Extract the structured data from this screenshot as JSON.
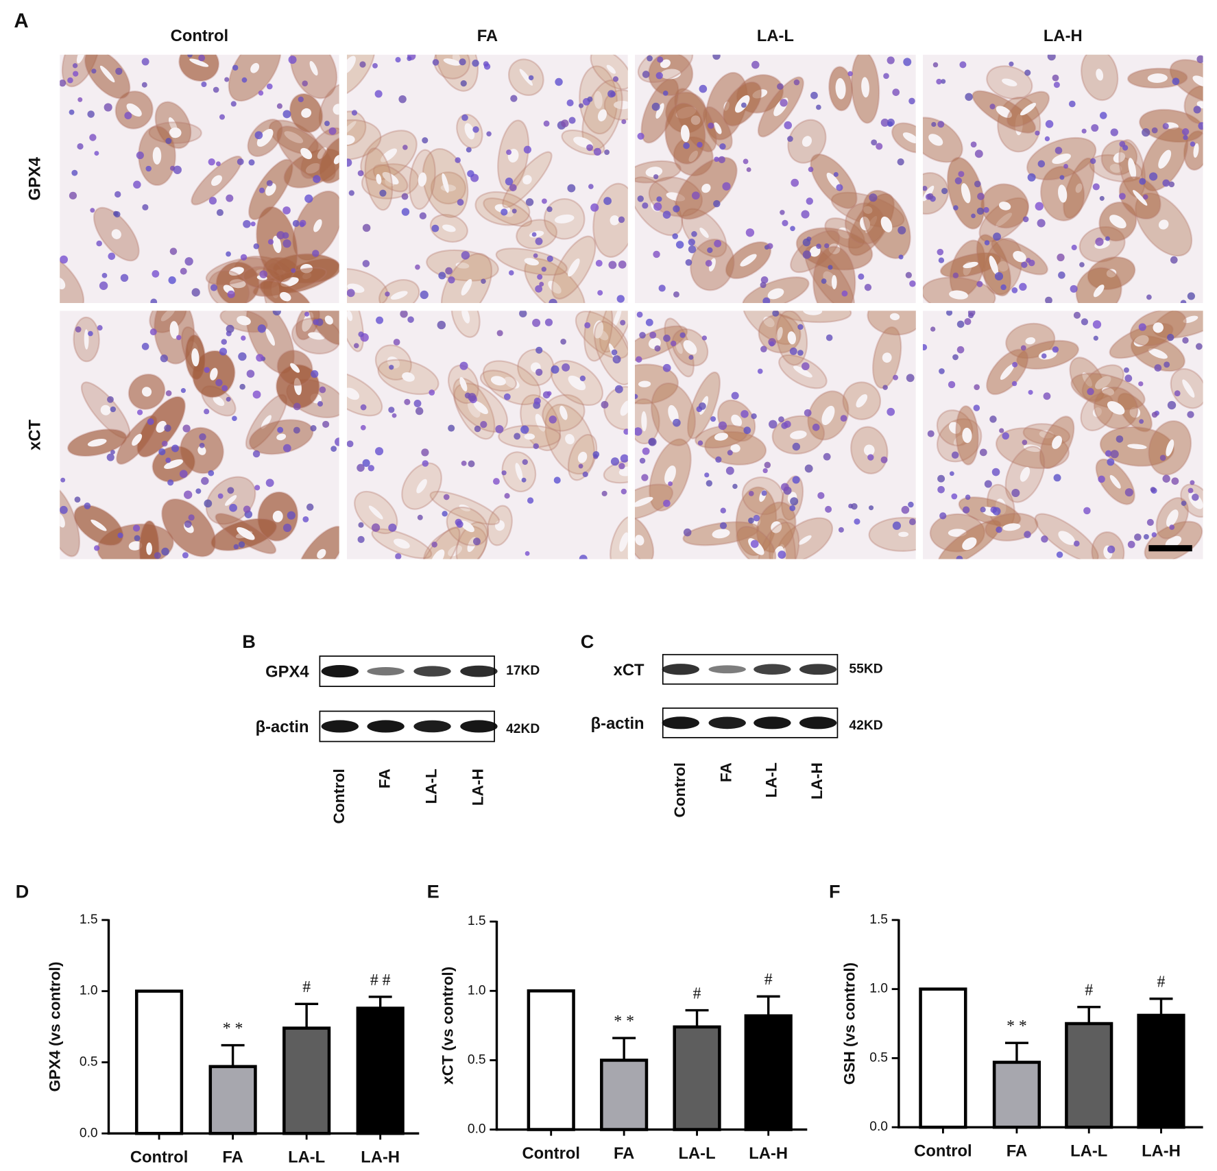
{
  "panels": {
    "A": {
      "label": "A",
      "columns": [
        "Control",
        "FA",
        "LA-L",
        "LA-H"
      ],
      "rows": [
        "GPX4",
        "xCT"
      ]
    },
    "B": {
      "label": "B",
      "proteins": [
        "GPX4",
        "β-actin"
      ],
      "sizes": [
        "17KD",
        "42KD"
      ],
      "lanes": [
        "Control",
        "FA",
        "LA-L",
        "LA-H"
      ]
    },
    "C": {
      "label": "C",
      "proteins": [
        "xCT",
        "β-actin"
      ],
      "sizes": [
        "55KD",
        "42KD"
      ],
      "lanes": [
        "Control",
        "FA",
        "LA-L",
        "LA-H"
      ]
    }
  },
  "chart_data": [
    {
      "type": "bar",
      "panel": "D",
      "ylabel": "GPX4  (vs control)",
      "categories": [
        "Control",
        "FA",
        "LA-L",
        "LA-H"
      ],
      "values": [
        1.0,
        0.47,
        0.74,
        0.88
      ],
      "errors": [
        0,
        0.15,
        0.17,
        0.08
      ],
      "colors": [
        "#ffffff",
        "#a7a7ae",
        "#5e5e5e",
        "#000000"
      ],
      "annotations": [
        null,
        "* *",
        "#",
        "# #"
      ],
      "ylim": [
        0,
        1.5
      ],
      "yticks": [
        {
          "value": 0,
          "label": "0.0"
        },
        0.5,
        {
          "value": 1,
          "label": "1.0"
        },
        1.5
      ]
    },
    {
      "type": "bar",
      "panel": "E",
      "ylabel": "xCT  (vs control)",
      "categories": [
        "Control",
        "FA",
        "LA-L",
        "LA-H"
      ],
      "values": [
        1.0,
        0.5,
        0.74,
        0.82
      ],
      "errors": [
        0,
        0.16,
        0.12,
        0.14
      ],
      "colors": [
        "#ffffff",
        "#a7a7ae",
        "#5e5e5e",
        "#000000"
      ],
      "annotations": [
        null,
        "* *",
        "#",
        "#"
      ],
      "ylim": [
        0,
        1.5
      ],
      "yticks": [
        {
          "value": 0,
          "label": "0.0"
        },
        0.5,
        {
          "value": 1,
          "label": "1.0"
        },
        1.5
      ]
    },
    {
      "type": "bar",
      "panel": "F",
      "ylabel": "GSH  (vs control)",
      "categories": [
        "Control",
        "FA",
        "LA-L",
        "LA-H"
      ],
      "values": [
        1.0,
        0.47,
        0.75,
        0.81
      ],
      "errors": [
        0,
        0.14,
        0.12,
        0.12
      ],
      "colors": [
        "#ffffff",
        "#a7a7ae",
        "#5e5e5e",
        "#000000"
      ],
      "annotations": [
        null,
        "* *",
        "#",
        "#"
      ],
      "ylim": [
        0,
        1.5
      ],
      "yticks": [
        {
          "value": 0,
          "label": "0.0"
        },
        0.5,
        {
          "value": 1,
          "label": "1.0"
        },
        1.5
      ]
    }
  ]
}
